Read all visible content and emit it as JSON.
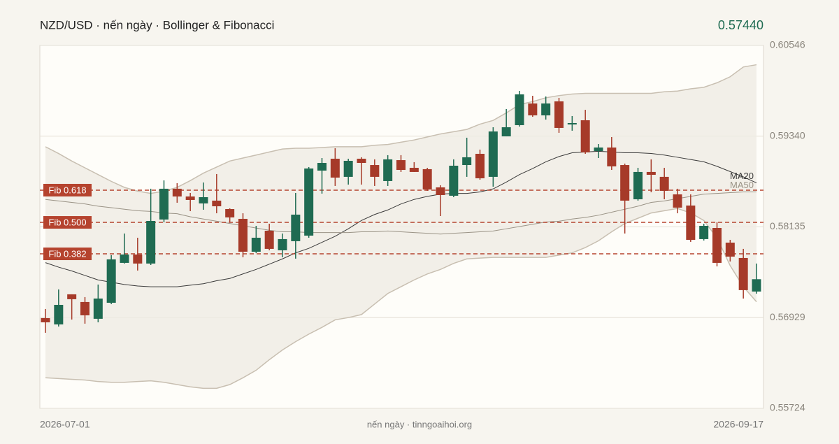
{
  "chart_data": {
    "type": "candlestick",
    "title": "NZD/USD · nến ngày · Bollinger & Fibonacci",
    "last_price": "0.57440",
    "source": "nến ngày · tinngoaihoi.org",
    "categories": [
      "2026-07-01",
      null,
      null,
      null,
      null,
      null,
      null,
      null,
      null,
      null,
      null,
      null,
      null,
      null,
      null,
      null,
      null,
      null,
      null,
      null,
      null,
      null,
      null,
      null,
      null,
      null,
      null,
      null,
      null,
      null,
      null,
      null,
      null,
      null,
      null,
      null,
      null,
      null,
      null,
      null,
      null,
      null,
      null,
      null,
      null,
      null,
      null,
      null,
      null,
      null,
      null,
      null,
      null,
      null,
      "2026-09-17"
    ],
    "open": [
      0.56923,
      0.56839,
      0.57239,
      0.57137,
      0.56914,
      0.57127,
      0.57657,
      0.57768,
      0.57648,
      0.58233,
      0.58642,
      0.58539,
      0.58447,
      0.58484,
      0.58372,
      0.58242,
      0.57805,
      0.58084,
      0.57824,
      0.57945,
      0.58019,
      0.58883,
      0.59041,
      0.588,
      0.59041,
      0.58957,
      0.58744,
      0.59022,
      0.5892,
      0.58902,
      0.5866,
      0.58549,
      0.58957,
      0.59106,
      0.588,
      0.59338,
      0.59487,
      0.59775,
      0.59617,
      0.59803,
      0.59496,
      0.59552,
      0.59143,
      0.5919,
      0.58957,
      0.58502,
      0.58865,
      0.588,
      0.58567,
      0.58419,
      0.57973,
      0.58121,
      0.57926,
      0.57722,
      0.57276
    ],
    "high": [
      0.57044,
      0.57304,
      0.57239,
      0.57202,
      0.57369,
      0.57759,
      0.58047,
      0.57991,
      0.58642,
      0.58753,
      0.58716,
      0.58586,
      0.58725,
      0.58837,
      0.58381,
      0.58316,
      0.58149,
      0.58177,
      0.58047,
      0.58586,
      0.5893,
      0.5905,
      0.5918,
      0.59041,
      0.5906,
      0.59032,
      0.59088,
      0.59088,
      0.58995,
      0.5892,
      0.58688,
      0.59032,
      0.5932,
      0.59162,
      0.59459,
      0.59701,
      0.59942,
      0.59877,
      0.59868,
      0.59849,
      0.59608,
      0.59691,
      0.59236,
      0.59329,
      0.58976,
      0.5892,
      0.59032,
      0.5892,
      0.58642,
      0.58567,
      0.58177,
      0.58196,
      0.57963,
      0.57843,
      0.57648
    ],
    "low": [
      0.56728,
      0.56811,
      0.56904,
      0.56849,
      0.56867,
      0.57109,
      0.57648,
      0.57555,
      0.57629,
      0.58196,
      0.58456,
      0.58344,
      0.58363,
      0.58316,
      0.58196,
      0.57731,
      0.57787,
      0.57824,
      0.57731,
      0.57713,
      0.57991,
      0.58577,
      0.58679,
      0.58697,
      0.58697,
      0.58679,
      0.58679,
      0.58865,
      0.58865,
      0.58614,
      0.58279,
      0.5853,
      0.588,
      0.58762,
      0.58669,
      0.59338,
      0.59468,
      0.59598,
      0.59561,
      0.59385,
      0.59413,
      0.59106,
      0.5905,
      0.58892,
      0.58047,
      0.58484,
      0.58595,
      0.58502,
      0.58316,
      0.57936,
      0.57954,
      0.5761,
      0.57675,
      0.57183,
      0.57248
    ],
    "close": [
      0.56867,
      0.57099,
      0.57174,
      0.5696,
      0.57183,
      0.57703,
      0.57768,
      0.57648,
      0.58214,
      0.58642,
      0.58539,
      0.58493,
      0.5853,
      0.58409,
      0.58261,
      0.57805,
      0.57991,
      0.57843,
      0.57973,
      0.58298,
      0.58911,
      0.58985,
      0.5879,
      0.59013,
      0.58985,
      0.588,
      0.59032,
      0.58892,
      0.58865,
      0.58632,
      0.58558,
      0.58948,
      0.5906,
      0.58781,
      0.59403,
      0.59459,
      0.59896,
      0.59617,
      0.59775,
      0.5945,
      0.59515,
      0.59125,
      0.5919,
      0.58939,
      0.58484,
      0.58865,
      0.58827,
      0.58614,
      0.58391,
      0.57963,
      0.58149,
      0.57657,
      0.5774,
      0.57295,
      0.5744
    ],
    "up_color": "#1f6b52",
    "down_color": "#a63a29",
    "bands": {
      "color": "#c8bfb1",
      "fill": "#efebe3",
      "upper": [
        0.592,
        0.5911,
        0.5901,
        0.5892,
        0.5883,
        0.5874,
        0.5866,
        0.5861,
        0.5858,
        0.5861,
        0.5866,
        0.5875,
        0.5885,
        0.5893,
        0.5901,
        0.5905,
        0.5909,
        0.5913,
        0.5917,
        0.5918,
        0.5918,
        0.5919,
        0.592,
        0.592,
        0.592,
        0.5922,
        0.5923,
        0.5926,
        0.5929,
        0.5933,
        0.5937,
        0.594,
        0.5943,
        0.595,
        0.5955,
        0.5965,
        0.5976,
        0.598,
        0.5985,
        0.5988,
        0.599,
        0.5991,
        0.5991,
        0.5991,
        0.5991,
        0.5991,
        0.5991,
        0.5993,
        0.5994,
        0.5997,
        0.5999,
        0.6005,
        0.6013,
        0.6026,
        0.6029
      ],
      "lower": [
        0.5613,
        0.5612,
        0.5611,
        0.561,
        0.5608,
        0.5607,
        0.5607,
        0.5608,
        0.5609,
        0.5607,
        0.5604,
        0.5601,
        0.5599,
        0.5599,
        0.5604,
        0.5613,
        0.5623,
        0.5637,
        0.565,
        0.5661,
        0.5671,
        0.568,
        0.569,
        0.5693,
        0.5697,
        0.5711,
        0.5725,
        0.5734,
        0.5743,
        0.5751,
        0.5757,
        0.5765,
        0.5771,
        0.5772,
        0.5773,
        0.5773,
        0.5773,
        0.5773,
        0.5773,
        0.5776,
        0.5779,
        0.5786,
        0.5795,
        0.5807,
        0.5818,
        0.5825,
        0.5832,
        0.5835,
        0.5838,
        0.5832,
        0.5822,
        0.5799,
        0.5762,
        0.5734,
        0.5714
      ]
    },
    "series": [
      {
        "name": "MA20",
        "color": "#3a3a3a",
        "values": [
          0.5766,
          0.576,
          0.5755,
          0.5749,
          0.5743,
          0.574,
          0.5737,
          0.5735,
          0.5734,
          0.5734,
          0.5734,
          0.5736,
          0.5738,
          0.5742,
          0.5745,
          0.5751,
          0.5757,
          0.5764,
          0.5771,
          0.5779,
          0.5785,
          0.5793,
          0.5801,
          0.5811,
          0.5822,
          0.583,
          0.5836,
          0.5844,
          0.585,
          0.5854,
          0.5857,
          0.5858,
          0.5858,
          0.586,
          0.5864,
          0.5873,
          0.5883,
          0.5891,
          0.59,
          0.5907,
          0.5912,
          0.5913,
          0.5914,
          0.5913,
          0.5912,
          0.5912,
          0.5911,
          0.5909,
          0.5906,
          0.5903,
          0.59,
          0.5894,
          0.5887,
          0.588,
          0.5872
        ]
      },
      {
        "name": "MA50",
        "color": "#9a9386",
        "values": [
          0.585,
          0.5848,
          0.5846,
          0.5844,
          0.5841,
          0.5839,
          0.5837,
          0.5835,
          0.5834,
          0.5832,
          0.5831,
          0.5827,
          0.5824,
          0.5821,
          0.5818,
          0.5815,
          0.5812,
          0.5809,
          0.5807,
          0.5807,
          0.5806,
          0.5806,
          0.5806,
          0.5806,
          0.5807,
          0.5807,
          0.5808,
          0.5807,
          0.5806,
          0.5805,
          0.5804,
          0.5805,
          0.5806,
          0.5807,
          0.5808,
          0.5811,
          0.5814,
          0.5817,
          0.582,
          0.5821,
          0.5824,
          0.5826,
          0.5829,
          0.5833,
          0.5837,
          0.5841,
          0.5846,
          0.5848,
          0.5851,
          0.5854,
          0.5857,
          0.5858,
          0.5859,
          0.586,
          0.586
        ]
      }
    ],
    "fib": [
      {
        "label": "Fib 0.618",
        "value": 0.58623
      },
      {
        "label": "Fib 0.500",
        "value": 0.58195
      },
      {
        "label": "Fib 0.382",
        "value": 0.57777
      }
    ],
    "fib_color": "#b5432e",
    "ylim": [
      0.55724,
      0.60546
    ],
    "yticks": [
      0.55724,
      0.56929,
      0.58135,
      {
        "value": 0.5934,
        "label": "0.59340"
      },
      0.60546
    ],
    "grid": true
  }
}
